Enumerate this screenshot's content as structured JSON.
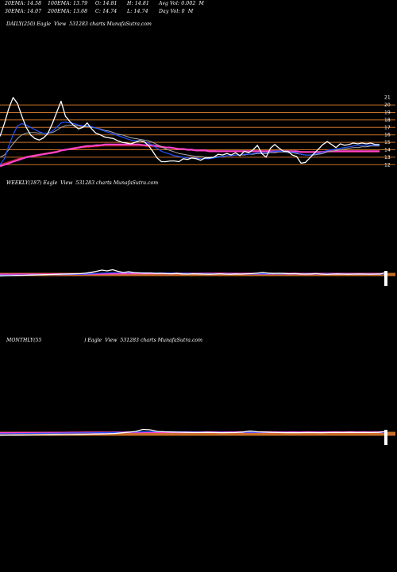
{
  "header": {
    "row1": [
      {
        "text": "20EMA: 14.58"
      },
      {
        "text": "100EMA: 13.79"
      },
      {
        "text": "O: 14.81"
      },
      {
        "text": "H: 14.81"
      },
      {
        "text": "Avg Vol: 0.002  M"
      }
    ],
    "row2": [
      {
        "text": "30EMA: 14.07"
      },
      {
        "text": "200EMA: 13.68"
      },
      {
        "text": "C: 14.74"
      },
      {
        "text": "L: 14.74"
      },
      {
        "text": "Day Vol: 0  M"
      }
    ]
  },
  "panels": {
    "daily_label": "DAILY(250) Eagle  View  531283 charts MunafaSutra.com",
    "weekly_label": "WEEKLY(187) Eagle  View  531283 charts MunafaSutra.com",
    "monthly_label": "MONTHLY(55",
    "monthly_label_2": ") Eagle  View  531283 charts MunafaSutra.com"
  },
  "colors": {
    "background": "#000000",
    "price": "#ffffff",
    "ema20": "#2255ff",
    "ema30": "#aaaaaa",
    "ema100": "#ff44cc",
    "ema200": "#cc2222",
    "level_line": "#c87028"
  },
  "chart_data": [
    {
      "type": "line",
      "panel": "daily",
      "y_ticks": [
        21,
        20,
        19,
        18,
        17,
        16,
        15,
        14,
        13,
        12
      ],
      "ylim": [
        11.5,
        21.5
      ],
      "levels": [
        20,
        19,
        18,
        17,
        16,
        15,
        14,
        13,
        12
      ],
      "series": [
        {
          "key": "price",
          "values": [
            15.8,
            17.5,
            19.5,
            21.0,
            20.2,
            18.5,
            17.0,
            16.0,
            15.5,
            15.3,
            15.6,
            16.2,
            17.5,
            19.0,
            20.5,
            18.5,
            17.8,
            17.2,
            16.8,
            17.0,
            17.6,
            16.8,
            16.2,
            16.0,
            15.7,
            15.6,
            15.5,
            15.2,
            15.0,
            14.9,
            14.8,
            15.0,
            15.2,
            15.1,
            14.6,
            13.8,
            12.9,
            12.4,
            12.4,
            12.5,
            12.5,
            12.4,
            12.8,
            12.7,
            12.9,
            12.8,
            12.6,
            12.9,
            12.9,
            13.0,
            13.4,
            13.3,
            13.5,
            13.3,
            13.6,
            13.2,
            13.8,
            13.6,
            14.0,
            14.6,
            13.5,
            13.0,
            14.2,
            14.7,
            14.2,
            13.8,
            13.8,
            13.3,
            13.1,
            12.2,
            12.3,
            12.9,
            13.5,
            14.1,
            14.7,
            15.1,
            14.7,
            14.3,
            14.8,
            14.6,
            14.7,
            14.9,
            14.8,
            14.9,
            14.8,
            14.9,
            14.7,
            14.7
          ]
        },
        {
          "key": "ema20",
          "values": [
            12.0,
            12.8,
            14.5,
            16.0,
            17.2,
            17.5,
            17.3,
            17.0,
            16.7,
            16.4,
            16.2,
            16.2,
            16.5,
            17.0,
            17.6,
            17.7,
            17.6,
            17.5,
            17.3,
            17.2,
            17.2,
            17.1,
            16.9,
            16.7,
            16.5,
            16.3,
            16.1,
            15.9,
            15.7,
            15.5,
            15.3,
            15.2,
            15.2,
            15.1,
            14.9,
            14.6,
            14.2,
            13.8,
            13.6,
            13.4,
            13.2,
            13.1,
            13.0,
            12.9,
            12.9,
            12.9,
            12.8,
            12.8,
            12.8,
            12.9,
            13.0,
            13.1,
            13.2,
            13.2,
            13.3,
            13.3,
            13.4,
            13.4,
            13.5,
            13.6,
            13.6,
            13.6,
            13.7,
            13.8,
            13.8,
            13.8,
            13.7,
            13.7,
            13.6,
            13.4,
            13.3,
            13.3,
            13.4,
            13.5,
            13.7,
            13.9,
            14.0,
            14.1,
            14.2,
            14.3,
            14.4,
            14.5,
            14.6,
            14.6,
            14.6,
            14.6,
            14.6,
            14.6
          ]
        },
        {
          "key": "ema30",
          "values": [
            13.0,
            13.3,
            14.0,
            14.8,
            15.5,
            16.0,
            16.2,
            16.3,
            16.3,
            16.2,
            16.2,
            16.2,
            16.3,
            16.6,
            17.0,
            17.2,
            17.3,
            17.3,
            17.2,
            17.1,
            17.1,
            17.0,
            16.9,
            16.8,
            16.6,
            16.5,
            16.3,
            16.1,
            16.0,
            15.8,
            15.6,
            15.5,
            15.4,
            15.3,
            15.2,
            15.0,
            14.7,
            14.4,
            14.1,
            13.9,
            13.7,
            13.5,
            13.4,
            13.3,
            13.2,
            13.1,
            13.1,
            13.0,
            13.0,
            13.0,
            13.1,
            13.1,
            13.2,
            13.2,
            13.3,
            13.3,
            13.3,
            13.4,
            13.4,
            13.5,
            13.5,
            13.5,
            13.6,
            13.6,
            13.7,
            13.7,
            13.6,
            13.6,
            13.5,
            13.4,
            13.3,
            13.3,
            13.3,
            13.4,
            13.5,
            13.7,
            13.8,
            13.9,
            14.0,
            14.1,
            14.2,
            14.3,
            14.3,
            14.4,
            14.4,
            14.5,
            14.5,
            14.5
          ]
        },
        {
          "key": "ema100",
          "values": [
            11.8,
            12.0,
            12.2,
            12.4,
            12.6,
            12.8,
            13.0,
            13.1,
            13.2,
            13.3,
            13.4,
            13.5,
            13.6,
            13.7,
            13.9,
            14.0,
            14.1,
            14.2,
            14.3,
            14.4,
            14.5,
            14.5,
            14.6,
            14.6,
            14.7,
            14.7,
            14.7,
            14.7,
            14.7,
            14.7,
            14.7,
            14.7,
            14.7,
            14.6,
            14.6,
            14.6,
            14.5,
            14.4,
            14.3,
            14.3,
            14.2,
            14.1,
            14.1,
            14.0,
            14.0,
            13.9,
            13.9,
            13.9,
            13.8,
            13.8,
            13.8,
            13.8,
            13.8,
            13.8,
            13.8,
            13.8,
            13.8,
            13.8,
            13.8,
            13.8,
            13.8,
            13.8,
            13.8,
            13.8,
            13.8,
            13.8,
            13.8,
            13.8,
            13.8,
            13.7,
            13.7,
            13.7,
            13.7,
            13.7,
            13.7,
            13.8,
            13.8,
            13.8,
            13.8,
            13.8,
            13.8,
            13.8,
            13.8,
            13.8,
            13.8,
            13.8,
            13.8,
            13.8
          ]
        },
        {
          "key": "ema200",
          "values": [
            12.0,
            12.2,
            12.4,
            12.6,
            12.8,
            12.9,
            13.1,
            13.2,
            13.3,
            13.4,
            13.5,
            13.6,
            13.7,
            13.8,
            13.9,
            14.0,
            14.1,
            14.1,
            14.2,
            14.3,
            14.3,
            14.4,
            14.4,
            14.5,
            14.5,
            14.5,
            14.5,
            14.5,
            14.5,
            14.5,
            14.5,
            14.5,
            14.5,
            14.5,
            14.4,
            14.4,
            14.4,
            14.3,
            14.3,
            14.2,
            14.2,
            14.1,
            14.1,
            14.0,
            14.0,
            14.0,
            13.9,
            13.9,
            13.9,
            13.9,
            13.8,
            13.8,
            13.8,
            13.8,
            13.8,
            13.8,
            13.8,
            13.8,
            13.8,
            13.8,
            13.8,
            13.7,
            13.7,
            13.7,
            13.7,
            13.7,
            13.7,
            13.7,
            13.7,
            13.7,
            13.7,
            13.7,
            13.7,
            13.7,
            13.7,
            13.7,
            13.7,
            13.7,
            13.7,
            13.7,
            13.7,
            13.7,
            13.7,
            13.7,
            13.7,
            13.7,
            13.7,
            13.7
          ]
        }
      ]
    },
    {
      "type": "line",
      "panel": "weekly",
      "ylim": [
        0,
        40
      ],
      "levels": [
        13,
        14,
        15,
        16
      ],
      "series": [
        {
          "key": "price",
          "values": [
            12.8,
            13.0,
            13.1,
            13.3,
            13.4,
            13.6,
            13.8,
            14.0,
            14.2,
            14.4,
            14.6,
            14.8,
            15.0,
            15.2,
            15.4,
            15.6,
            16.2,
            17.2,
            18.5,
            20.0,
            19.0,
            20.5,
            18.5,
            17.0,
            18.0,
            16.8,
            16.5,
            16.2,
            16.4,
            15.8,
            16.0,
            15.6,
            15.4,
            15.8,
            15.2,
            15.0,
            15.4,
            15.2,
            15.0,
            14.8,
            15.0,
            15.4,
            15.0,
            14.8,
            15.2,
            15.0,
            15.4,
            15.6,
            16.2,
            17.0,
            16.2,
            15.8,
            16.0,
            15.8,
            15.4,
            15.6,
            15.2,
            15.0,
            15.2,
            15.6,
            15.0,
            14.6,
            15.0,
            15.2,
            15.0,
            14.8,
            15.0,
            15.1,
            15.0,
            14.9,
            15.0,
            15.2,
            17.0
          ]
        },
        {
          "key": "ema20",
          "values": [
            13.6,
            13.6,
            13.7,
            13.7,
            13.8,
            13.9,
            14.0,
            14.1,
            14.2,
            14.3,
            14.4,
            14.5,
            14.6,
            14.7,
            14.8,
            14.9,
            15.1,
            15.4,
            15.8,
            16.2,
            16.4,
            16.7,
            16.8,
            16.8,
            16.9,
            16.8,
            16.7,
            16.6,
            16.5,
            16.4,
            16.3,
            16.2,
            16.1,
            16.0,
            15.9,
            15.8,
            15.7,
            15.6,
            15.5,
            15.4,
            15.3,
            15.3,
            15.2,
            15.2,
            15.2,
            15.1,
            15.1,
            15.2,
            15.3,
            15.4,
            15.4,
            15.4,
            15.4,
            15.4,
            15.4,
            15.3,
            15.3,
            15.3,
            15.2,
            15.2,
            15.2,
            15.1,
            15.1,
            15.1,
            15.1,
            15.0,
            15.0,
            15.0,
            15.0,
            15.0,
            15.0,
            15.0,
            15.2
          ]
        },
        {
          "key": "ema100",
          "values": [
            14.5,
            14.5,
            14.5,
            14.6,
            14.6,
            14.6,
            14.7,
            14.7,
            14.7,
            14.8,
            14.8,
            14.9,
            14.9,
            15.0,
            15.0,
            15.0,
            15.1,
            15.2,
            15.3,
            15.4,
            15.5,
            15.6,
            15.7,
            15.7,
            15.8,
            15.8,
            15.8,
            15.8,
            15.8,
            15.8,
            15.8,
            15.8,
            15.8,
            15.8,
            15.8,
            15.7,
            15.7,
            15.7,
            15.7,
            15.6,
            15.6,
            15.6,
            15.6,
            15.5,
            15.5,
            15.5,
            15.5,
            15.5,
            15.5,
            15.5,
            15.5,
            15.5,
            15.5,
            15.5,
            15.5,
            15.5,
            15.4,
            15.4,
            15.4,
            15.4,
            15.4,
            15.4,
            15.4,
            15.4,
            15.4,
            15.3,
            15.3,
            15.3,
            15.3,
            15.3,
            15.3,
            15.3,
            15.3
          ]
        }
      ]
    },
    {
      "type": "line",
      "panel": "monthly",
      "ylim": [
        0,
        40
      ],
      "levels": [
        12,
        13,
        14,
        15,
        16
      ],
      "series": [
        {
          "key": "price",
          "values": [
            12.0,
            12.1,
            12.2,
            12.3,
            12.4,
            12.5,
            12.6,
            12.7,
            12.8,
            12.9,
            13.0,
            13.2,
            13.4,
            13.6,
            13.8,
            14.0,
            14.4,
            15.2,
            16.0,
            17.0,
            19.5,
            19.0,
            17.0,
            16.5,
            16.2,
            16.0,
            15.8,
            15.6,
            15.6,
            15.8,
            15.6,
            15.4,
            15.5,
            15.6,
            16.2,
            17.5,
            16.5,
            16.2,
            15.8,
            15.6,
            15.4,
            15.5,
            15.4,
            15.6,
            15.5,
            15.4,
            15.6,
            15.7,
            15.6,
            15.8,
            15.6,
            15.7,
            15.6,
            15.8,
            17.0
          ]
        },
        {
          "key": "ema20",
          "values": [
            14.0,
            14.1,
            14.2,
            14.3,
            14.4,
            14.5,
            14.6,
            14.7,
            14.8,
            14.9,
            15.0,
            15.1,
            15.2,
            15.3,
            15.4,
            15.5,
            15.6,
            15.8,
            16.0,
            16.2,
            16.5,
            16.7,
            16.7,
            16.6,
            16.5,
            16.4,
            16.3,
            16.2,
            16.1,
            16.0,
            15.9,
            15.9,
            15.8,
            15.8,
            15.8,
            15.9,
            15.9,
            15.9,
            15.8,
            15.8,
            15.7,
            15.7,
            15.7,
            15.7,
            15.7,
            15.7,
            15.7,
            15.7,
            15.7,
            15.7,
            15.7,
            15.7,
            15.7,
            15.7,
            15.8
          ]
        },
        {
          "key": "ema100",
          "values": [
            15.0,
            15.0,
            15.1,
            15.1,
            15.2,
            15.2,
            15.3,
            15.3,
            15.4,
            15.4,
            15.5,
            15.5,
            15.6,
            15.6,
            15.7,
            15.7,
            15.8,
            15.8,
            15.9,
            15.9,
            16.0,
            16.0,
            16.0,
            16.0,
            16.0,
            16.0,
            16.0,
            16.0,
            16.0,
            16.0,
            16.0,
            16.0,
            16.0,
            16.0,
            16.0,
            16.0,
            16.0,
            16.0,
            16.0,
            16.0,
            16.0,
            16.0,
            16.0,
            16.0,
            16.0,
            16.0,
            16.0,
            16.0,
            16.0,
            16.0,
            16.0,
            16.0,
            16.0,
            16.0,
            16.0
          ]
        }
      ]
    }
  ]
}
